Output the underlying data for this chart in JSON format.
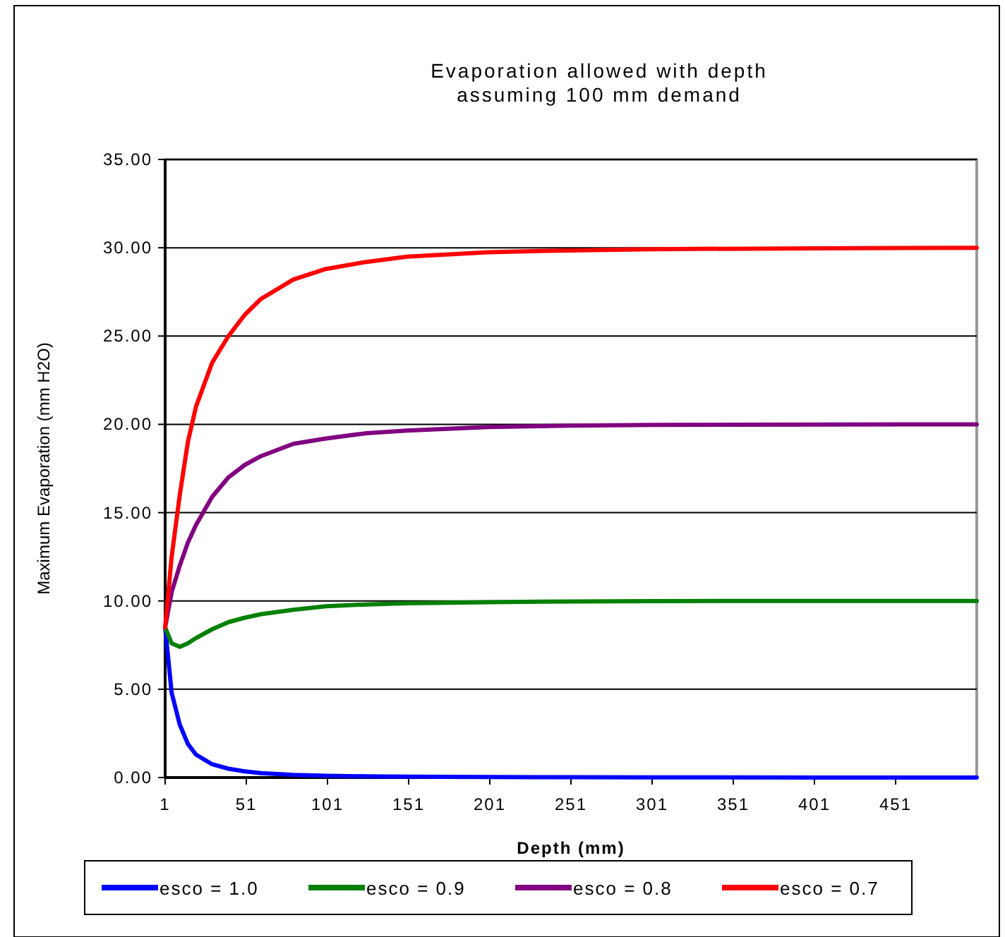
{
  "chart_data": {
    "type": "line",
    "title": "Evaporation allowed with depth\nassuming 100 mm demand",
    "xlabel": "Depth (mm)",
    "ylabel": "Maximum Evaporation (mm H2O)",
    "x": [
      1,
      5,
      10,
      15,
      20,
      30,
      40,
      50,
      60,
      80,
      100,
      125,
      150,
      200,
      250,
      300,
      400,
      501
    ],
    "series": [
      {
        "name": "esco = 1.0",
        "color": "#0000ff",
        "values": [
          8.5,
          4.8,
          3,
          1.9,
          1.3,
          0.75,
          0.5,
          0.35,
          0.25,
          0.15,
          0.1,
          0.07,
          0.05,
          0.03,
          0.02,
          0.01,
          0,
          0
        ]
      },
      {
        "name": "esco = 0.9",
        "color": "#008000",
        "values": [
          8.5,
          7.6,
          7.4,
          7.6,
          7.9,
          8.4,
          8.8,
          9.05,
          9.25,
          9.5,
          9.7,
          9.8,
          9.87,
          9.93,
          9.97,
          9.99,
          10,
          10
        ]
      },
      {
        "name": "esco = 0.8",
        "color": "#800080",
        "values": [
          8.5,
          10.5,
          12,
          13.3,
          14.3,
          15.9,
          17,
          17.7,
          18.2,
          18.9,
          19.2,
          19.5,
          19.65,
          19.85,
          19.93,
          19.97,
          19.99,
          20
        ]
      },
      {
        "name": "esco = 0.7",
        "color": "#ff0000",
        "values": [
          8.5,
          12.5,
          16,
          19,
          21,
          23.5,
          25,
          26.2,
          27.1,
          28.2,
          28.8,
          29.2,
          29.5,
          29.75,
          29.85,
          29.92,
          29.97,
          30
        ]
      }
    ],
    "xlim": [
      1,
      501
    ],
    "xticks": [
      1,
      51,
      101,
      151,
      201,
      251,
      301,
      351,
      401,
      451
    ],
    "ylim": [
      0,
      35
    ],
    "yticks": [
      {
        "value": 0,
        "label": "0.00"
      },
      {
        "value": 5,
        "label": "5.00"
      },
      {
        "value": 10,
        "label": "10.00"
      },
      {
        "value": 15,
        "label": "15.00"
      },
      {
        "value": 20,
        "label": "20.00"
      },
      {
        "value": 25,
        "label": "25.00"
      },
      {
        "value": 30,
        "label": "30.00"
      },
      {
        "value": 35,
        "label": "35.00"
      }
    ],
    "grid": "y",
    "legend": "bottom",
    "marker": "none",
    "line_style": "solid"
  }
}
